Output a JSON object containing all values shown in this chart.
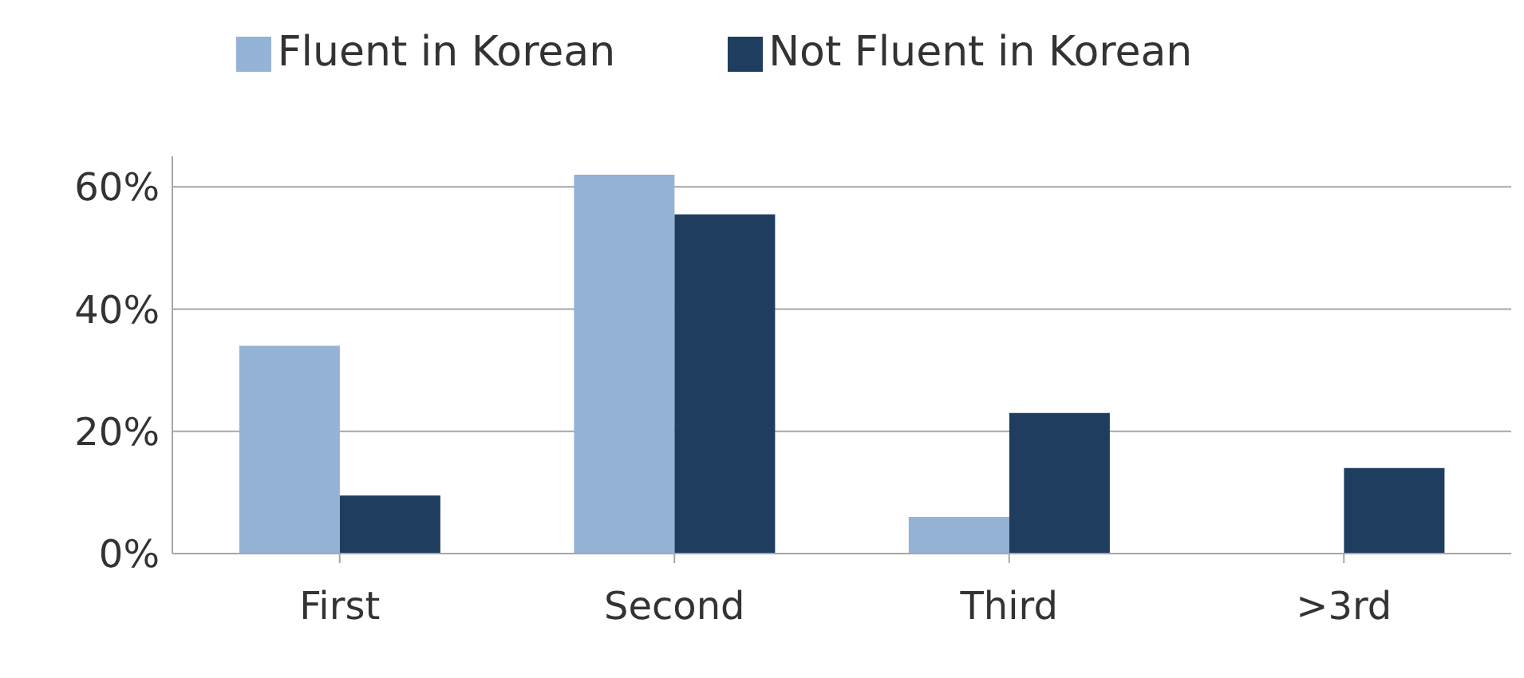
{
  "chart_data": {
    "type": "bar",
    "categories": [
      "First",
      "Second",
      "Third",
      ">3rd"
    ],
    "series": [
      {
        "name": "Fluent in Korean",
        "color": "#95b3d7",
        "values": [
          34,
          62,
          6,
          0
        ]
      },
      {
        "name": "Not Fluent in Korean",
        "color": "#1f3d5f",
        "values": [
          9.5,
          55.5,
          23,
          14
        ]
      }
    ],
    "ylim": [
      0,
      65
    ],
    "yticks": [
      {
        "value": 0,
        "label": "0%"
      },
      {
        "value": 20,
        "label": "20%"
      },
      {
        "value": 40,
        "label": "40%"
      },
      {
        "value": 60,
        "label": "60%"
      }
    ],
    "grid": "y",
    "legend": "top"
  }
}
